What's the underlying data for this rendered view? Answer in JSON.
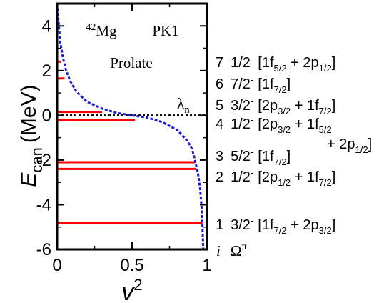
{
  "chart_data": {
    "type": "line",
    "title": "",
    "nucleus": {
      "mass_number": "42",
      "element": "Mg"
    },
    "force": "PK1",
    "shape": "Prolate",
    "ylabel": {
      "symbol": "E",
      "subscript": "can",
      "unit": "(MeV)"
    },
    "xlabel": {
      "symbol": "v",
      "superscript": "2"
    },
    "xlim": [
      0,
      1
    ],
    "ylim": [
      -6,
      5
    ],
    "xticks": [
      0,
      0.5,
      1
    ],
    "xtick_labels": [
      "0",
      "0.5",
      "1"
    ],
    "yticks": [
      -6,
      -4,
      -2,
      0,
      2,
      4
    ],
    "ytick_labels": [
      "-6",
      "-4",
      "-2",
      "0",
      "2",
      "4"
    ],
    "grid": false,
    "fermi_level": {
      "symbol": "λ",
      "subscript": "n",
      "value": 0.0
    },
    "occupation_curve": {
      "color": "#1a1ad6",
      "style": "dotted",
      "points": [
        [
          0.0,
          5.0
        ],
        [
          0.02,
          3.3
        ],
        [
          0.04,
          2.55
        ],
        [
          0.06,
          2.0
        ],
        [
          0.09,
          1.5
        ],
        [
          0.13,
          1.05
        ],
        [
          0.2,
          0.6
        ],
        [
          0.3,
          0.3
        ],
        [
          0.4,
          0.1
        ],
        [
          0.5,
          0.0
        ],
        [
          0.6,
          -0.1
        ],
        [
          0.7,
          -0.3
        ],
        [
          0.8,
          -0.65
        ],
        [
          0.87,
          -1.15
        ],
        [
          0.9,
          -1.5
        ],
        [
          0.92,
          -2.0
        ],
        [
          0.94,
          -2.6
        ],
        [
          0.955,
          -3.3
        ],
        [
          0.965,
          -4.2
        ],
        [
          0.97,
          -5.0
        ],
        [
          0.975,
          -6.0
        ]
      ]
    },
    "levels": [
      {
        "i": "7",
        "omega": "1/2",
        "parity": "-",
        "energy": 2.4,
        "occupation": 0.025,
        "config": [
          [
            {
              "n": "1f",
              "j": "5/2"
            },
            {
              "n": "2p",
              "j": "1/2"
            }
          ]
        ]
      },
      {
        "i": "6",
        "omega": "7/2",
        "parity": "-",
        "energy": 1.65,
        "occupation": 0.05,
        "config": [
          [
            {
              "n": "1f",
              "j": "7/2"
            }
          ]
        ]
      },
      {
        "i": "5",
        "omega": "3/2",
        "parity": "-",
        "energy": 0.15,
        "occupation": 0.3,
        "config": [
          [
            {
              "n": "2p",
              "j": "3/2"
            },
            {
              "n": "1f",
              "j": "7/2"
            }
          ]
        ]
      },
      {
        "i": "4",
        "omega": "1/2",
        "parity": "-",
        "energy": -0.2,
        "occupation": 0.52,
        "config": [
          [
            {
              "n": "2p",
              "j": "3/2"
            },
            {
              "n": "1f",
              "j": "5/2"
            }
          ],
          [
            {
              "n": "2p",
              "j": "1/2"
            }
          ]
        ]
      },
      {
        "i": "3",
        "omega": "5/2",
        "parity": "-",
        "energy": -2.1,
        "occupation": 0.92,
        "config": [
          [
            {
              "n": "1f",
              "j": "7/2"
            }
          ]
        ]
      },
      {
        "i": "2",
        "omega": "1/2",
        "parity": "-",
        "energy": -2.4,
        "occupation": 0.93,
        "config": [
          [
            {
              "n": "2p",
              "j": "1/2"
            },
            {
              "n": "1f",
              "j": "7/2"
            }
          ]
        ]
      },
      {
        "i": "1",
        "omega": "3/2",
        "parity": "-",
        "energy": -4.8,
        "occupation": 0.97,
        "config": [
          [
            {
              "n": "1f",
              "j": "7/2"
            },
            {
              "n": "2p",
              "j": "3/2"
            }
          ]
        ]
      }
    ],
    "label_header": {
      "index": "i",
      "omega": "Ω",
      "parity": "π"
    },
    "colors": {
      "levels": "#ff0000",
      "fermi": "#000000",
      "axes": "#000000"
    }
  }
}
